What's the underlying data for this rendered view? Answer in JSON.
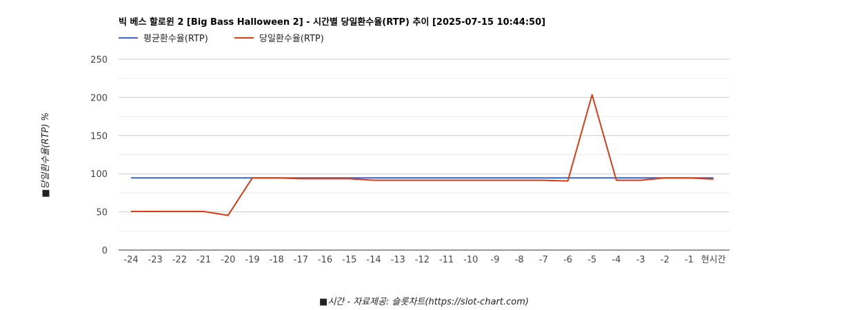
{
  "colors": {
    "avg_line": "#3366cc",
    "daily_line": "#dc3912"
  },
  "chart_data": {
    "type": "line",
    "title": "빅 베스 할로윈 2 [Big Bass Halloween 2] - 시간별 당일환수율(RTP) 추이 [2025-07-15 10:44:50]",
    "xlabel": "■시간 - 자료제공: 슬롯차트(https://slot-chart.com)",
    "ylabel": "■당일환수율(RTP) %",
    "ylim": [
      0,
      250
    ],
    "yticks": [
      "0",
      "50",
      "100",
      "150",
      "200",
      "250"
    ],
    "grid": true,
    "legend_position": "top-left",
    "categories": [
      "-24",
      "-23",
      "-22",
      "-21",
      "-20",
      "-19",
      "-18",
      "-17",
      "-16",
      "-15",
      "-14",
      "-13",
      "-12",
      "-11",
      "-10",
      "-9",
      "-8",
      "-7",
      "-6",
      "-5",
      "-4",
      "-3",
      "-2",
      "-1",
      "현시간"
    ],
    "series": [
      {
        "name": "평균환수율(RTP)",
        "values": [
          94.5,
          94.5,
          94.5,
          94.5,
          94.5,
          94.5,
          94.5,
          94.5,
          94.5,
          94.5,
          94.5,
          94.5,
          94.5,
          94.5,
          94.5,
          94.5,
          94.5,
          94.5,
          94.5,
          94.5,
          94.5,
          94.5,
          94.5,
          94.5,
          94.5
        ]
      },
      {
        "name": "당일환수율(RTP)",
        "values": [
          50.5,
          50.5,
          50.5,
          50.5,
          45.5,
          94.5,
          94.5,
          93.5,
          93.5,
          93.5,
          91.5,
          91.5,
          91.5,
          91.5,
          91.5,
          91.5,
          91.5,
          91.5,
          90.5,
          203.5,
          91.5,
          91.5,
          94.5,
          94.5,
          93.0
        ]
      }
    ]
  }
}
